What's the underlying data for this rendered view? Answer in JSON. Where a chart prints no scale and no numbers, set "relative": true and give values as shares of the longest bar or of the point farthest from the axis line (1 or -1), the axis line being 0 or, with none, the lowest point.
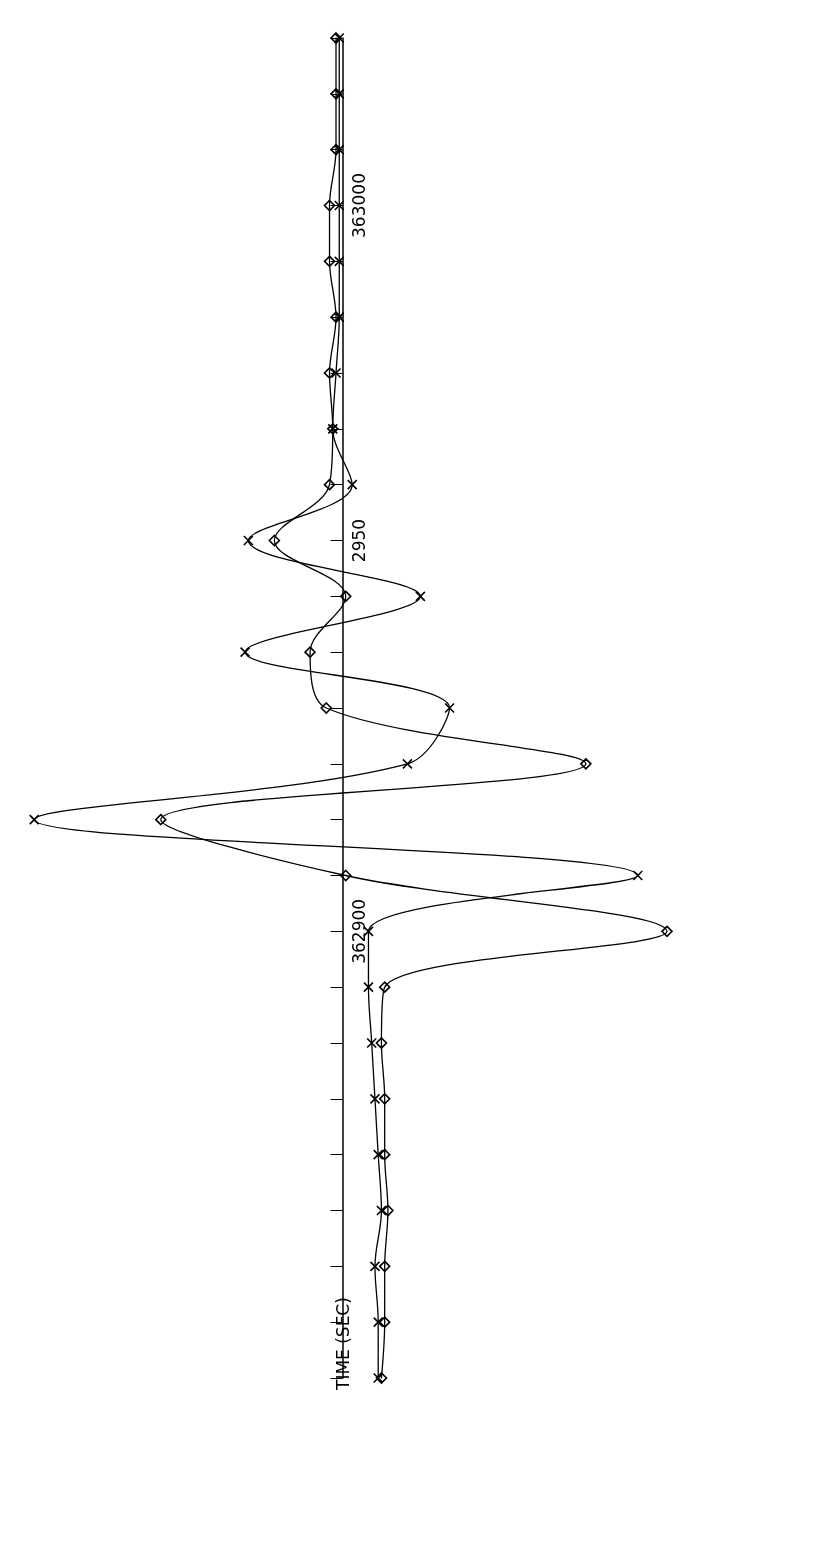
{
  "chart_data": {
    "type": "line",
    "orientation": "horizontal",
    "relative": true,
    "ylabel": "TIME (SEC)",
    "grid": false,
    "line_style": "solid",
    "categories": [
      null,
      null,
      null,
      "363000",
      null,
      null,
      null,
      null,
      null,
      "2950",
      null,
      null,
      null,
      null,
      null,
      null,
      "362900",
      null,
      null,
      null,
      null,
      null,
      null,
      null,
      null
    ],
    "series": [
      {
        "color": "#000000",
        "marker": "cross",
        "values": [
          -0.01,
          -0.01,
          -0.01,
          -0.01,
          -0.01,
          -0.01,
          -0.02,
          -0.03,
          0.03,
          -0.29,
          0.24,
          -0.3,
          0.33,
          0.2,
          -0.95,
          0.91,
          0.08,
          0.08,
          0.09,
          0.1,
          0.11,
          0.12,
          0.1,
          0.11,
          0.11
        ]
      },
      {
        "color": "#000000",
        "marker": "diamond",
        "values": [
          -0.02,
          -0.02,
          -0.02,
          -0.04,
          -0.04,
          -0.02,
          -0.04,
          -0.03,
          -0.04,
          -0.21,
          0.01,
          -0.1,
          -0.05,
          0.75,
          -0.56,
          0.01,
          1,
          0.13,
          0.12,
          0.13,
          0.13,
          0.14,
          0.13,
          0.13,
          0.12
        ]
      }
    ]
  }
}
